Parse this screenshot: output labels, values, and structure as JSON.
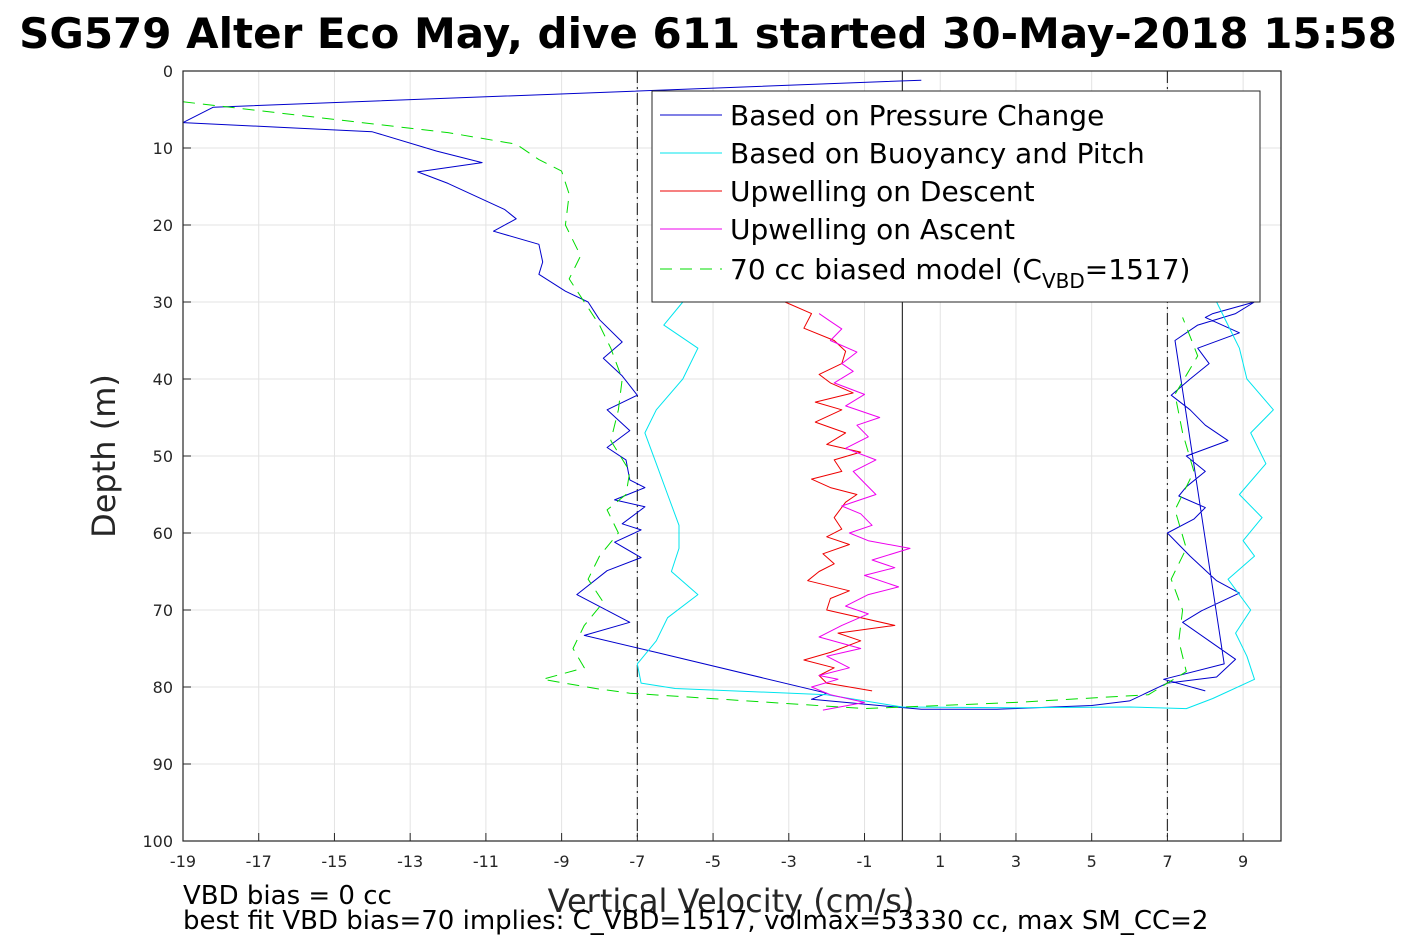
{
  "chart_data": {
    "type": "line",
    "title": "SG579 Alter Eco May, dive 611 started 30-May-2018 15:58",
    "xlabel": "Vertical Velocity (cm/s)",
    "ylabel": "Depth (m)",
    "xlim": [
      -19,
      10
    ],
    "ylim": [
      0,
      100
    ],
    "y_reversed": true,
    "grid": true,
    "xticks": [
      -19,
      -17,
      -15,
      -13,
      -11,
      -9,
      -7,
      -5,
      -3,
      -1,
      1,
      3,
      5,
      7,
      9
    ],
    "yticks": [
      0,
      10,
      20,
      30,
      40,
      50,
      60,
      70,
      80,
      90,
      100
    ],
    "legend_position": "top-right",
    "legend": [
      {
        "label": "Based on Pressure Change",
        "color": "#0000cc",
        "dash": "solid"
      },
      {
        "label": "Based on Buoyancy and Pitch",
        "color": "#00e5ee",
        "dash": "solid"
      },
      {
        "label": "Upwelling on Descent",
        "color": "#ee0000",
        "dash": "solid"
      },
      {
        "label": "Upwelling on Ascent",
        "color": "#ee00ee",
        "dash": "solid"
      },
      {
        "label_prefix": "70 cc biased model (C",
        "label_sub": "VBD",
        "label_suffix": "=1517)",
        "color": "#00dd00",
        "dash": "dashed"
      }
    ],
    "reference_lines": [
      {
        "x": -7,
        "style": "dash-dot",
        "color": "#333333"
      },
      {
        "x": 0,
        "style": "solid",
        "color": "#333333"
      },
      {
        "x": 7,
        "style": "dash-dot",
        "color": "#333333"
      }
    ],
    "series": [
      {
        "name": "Based on Pressure Change",
        "color": "#0000cc",
        "x": [
          0.5,
          -18.2,
          -19,
          -14,
          -12.3,
          -11.1,
          -12.8,
          -12.0,
          -10.5,
          -10.2,
          -10.8,
          -9.6,
          -9.5,
          -9.6,
          -8.9,
          -8.3,
          -8.0,
          -7.4,
          -7.9,
          -7.4,
          -7.0,
          -7.8,
          -7.2,
          -7.8,
          -7.3,
          -7.2,
          -6.8,
          -7.6,
          -6.8,
          -7.4,
          -6.9,
          -7.6,
          -6.9,
          -7.8,
          -8.6,
          -7.2,
          -8.4,
          -6.5,
          -2.0,
          -2.4,
          0.5,
          2.5,
          5.0,
          6.0,
          7.0,
          8.3,
          8.8,
          8.1,
          7.4,
          7.9,
          8.9,
          8.3,
          7.6,
          7.0,
          7.7,
          8.0,
          7.3,
          7.5,
          8.0,
          7.5,
          8.6,
          8.0,
          7.6,
          7.1,
          7.6,
          8.1,
          7.8,
          8.9,
          8.0,
          8.2,
          9.3,
          8.8,
          7.8,
          7.2,
          8.5,
          6.9,
          8.0
        ],
        "y": [
          1.2,
          4.7,
          6.7,
          7.9,
          10.4,
          11.9,
          13.1,
          14.6,
          18.0,
          19.2,
          20.8,
          22.5,
          24.8,
          26.4,
          28.6,
          30.0,
          32.3,
          35.2,
          37.3,
          39.6,
          42.1,
          44.0,
          46.7,
          48.9,
          50.5,
          53.1,
          54.1,
          55.7,
          56.6,
          58.8,
          59.6,
          61.2,
          63.2,
          64.9,
          68.0,
          71.6,
          73.3,
          75.5,
          80.8,
          81.6,
          82.9,
          82.9,
          82.4,
          81.8,
          79.5,
          78.7,
          76.4,
          74.0,
          71.6,
          70.1,
          67.8,
          66.2,
          63.0,
          60.0,
          58.2,
          56.7,
          55.2,
          54.0,
          52.0,
          50.0,
          48.0,
          46.0,
          44.0,
          42.1,
          40.0,
          38.0,
          36.0,
          34.0,
          32.0,
          31.5,
          30.0,
          31.5,
          33.0,
          35.0,
          77.0,
          79.0,
          80.5
        ]
      },
      {
        "name": "Based on Buoyancy and Pitch",
        "color": "#00e5ee",
        "x": [
          -4.6,
          -5.8,
          -5.6,
          -5.3,
          -5.6,
          -5.7,
          -6.4,
          -5.6,
          -6.1,
          -5.5,
          -6.0,
          -6.4,
          -5.8,
          -6.3,
          -5.4,
          -5.8,
          -6.5,
          -6.8,
          -6.5,
          -6.2,
          -5.9,
          -5.9,
          -6.1,
          -5.4,
          -6.2,
          -6.5,
          -7.0,
          -6.9,
          -6.0,
          -2.0,
          0.0,
          3.0,
          6.0,
          7.5,
          8.2,
          9.3,
          9.1,
          8.8,
          9.2,
          8.6,
          9.3,
          9.0,
          9.5,
          8.9,
          9.6,
          9.2,
          9.8,
          9.1,
          8.9,
          8.6,
          8.3,
          8.9,
          9.0,
          8.5,
          8.2,
          9.2
        ],
        "y": [
          6.5,
          8.0,
          10.0,
          12.0,
          14.0,
          16.0,
          18.0,
          20.0,
          22.0,
          24.0,
          26.0,
          28.0,
          30.0,
          33.0,
          36.0,
          40.0,
          44.0,
          47.0,
          51.0,
          55.0,
          59.0,
          62.0,
          65.0,
          68.0,
          71.0,
          74.0,
          77.0,
          79.5,
          80.2,
          81.0,
          82.6,
          82.7,
          82.6,
          82.8,
          81.5,
          79.0,
          76.0,
          73.0,
          70.0,
          66.0,
          63.0,
          61.0,
          58.0,
          55.0,
          51.0,
          47.0,
          44.0,
          40.0,
          36.0,
          33.0,
          30.0,
          28.0,
          25.0,
          22.0,
          19.0,
          15.0
        ]
      },
      {
        "name": "Upwelling on Descent",
        "color": "#ee0000",
        "x": [
          -3.1,
          -2.4,
          -2.6,
          -1.8,
          -1.5,
          -1.6,
          -2.2,
          -1.9,
          -1.3,
          -2.3,
          -1.6,
          -2.3,
          -1.5,
          -2.0,
          -1.1,
          -1.8,
          -1.6,
          -2.4,
          -1.9,
          -1.2,
          -1.5,
          -1.8,
          -1.6,
          -2.0,
          -1.4,
          -2.1,
          -1.8,
          -2.2,
          -2.5,
          -1.4,
          -1.9,
          -2.0,
          -0.2,
          -1.7,
          -1.1,
          -1.9,
          -2.6,
          -1.8,
          -2.2,
          -2.0,
          -0.8
        ],
        "y": [
          30.0,
          31.5,
          33.4,
          35.0,
          36.4,
          38.0,
          39.4,
          40.5,
          41.8,
          43.0,
          44.0,
          45.6,
          47.0,
          48.5,
          49.5,
          50.5,
          52.0,
          53.0,
          54.1,
          55.0,
          56.0,
          58.0,
          59.5,
          60.5,
          61.5,
          62.7,
          64.0,
          65.0,
          66.2,
          67.5,
          68.5,
          70.0,
          72.0,
          73.0,
          74.0,
          75.5,
          76.5,
          77.5,
          78.5,
          79.5,
          80.5
        ]
      },
      {
        "name": "Upwelling on Ascent",
        "color": "#ee00ee",
        "x": [
          -2.2,
          -1.9,
          -1.6,
          -1.9,
          -1.2,
          -1.6,
          -1.3,
          -1.8,
          -1.0,
          -1.5,
          -0.6,
          -1.2,
          -0.9,
          -1.5,
          -0.7,
          -1.3,
          -1.0,
          -0.7,
          -1.6,
          -1.1,
          -0.8,
          -1.4,
          -0.9,
          0.2,
          -0.8,
          -0.2,
          -1.0,
          -0.1,
          -0.9,
          -1.5,
          -0.9,
          -1.6,
          -2.2,
          -1.1,
          -2.0,
          -1.4,
          -2.2,
          -1.7,
          -2.4,
          -1.9,
          -1.0,
          -2.1
        ],
        "y": [
          31.5,
          32.5,
          33.5,
          35.0,
          36.5,
          38.0,
          39.0,
          40.5,
          42.0,
          43.5,
          45.0,
          46.0,
          47.5,
          49.0,
          50.5,
          52.0,
          53.5,
          55.0,
          56.5,
          57.5,
          59.0,
          60.0,
          61.0,
          62.0,
          63.5,
          64.5,
          65.5,
          67.0,
          68.0,
          69.5,
          70.5,
          72.0,
          73.5,
          75.0,
          76.0,
          77.5,
          78.5,
          79.0,
          80.0,
          81.0,
          82.0,
          83.0
        ]
      },
      {
        "name": "70 cc biased model (C_VBD=1517)",
        "color": "#00dd00",
        "x": [
          -19,
          -12.0,
          -10.2,
          -9.6,
          -9.0,
          -8.8,
          -8.9,
          -8.5,
          -8.8,
          -8.4,
          -8.0,
          -7.7,
          -7.4,
          -7.5,
          -7.7,
          -7.2,
          -7.3,
          -7.8,
          -7.5,
          -8.0,
          -8.3,
          -7.9,
          -8.4,
          -8.7,
          -8.4,
          -9.5,
          -8.1,
          -7.2,
          -1.0,
          3.0,
          6.5,
          7.5,
          7.3,
          7.4,
          7.1,
          7.5,
          7.2,
          7.7,
          7.4,
          7.2,
          7.8,
          7.4
        ],
        "y": [
          4.0,
          8.0,
          9.5,
          11.5,
          13.0,
          16.0,
          20.0,
          24.0,
          27.0,
          30.0,
          33.0,
          36.0,
          40.0,
          44.0,
          48.0,
          52.0,
          55.0,
          57.0,
          60.0,
          63.0,
          66.0,
          69.0,
          72.0,
          75.0,
          77.5,
          79.0,
          80.2,
          80.8,
          82.8,
          82.0,
          81.0,
          78.0,
          74.0,
          70.0,
          66.0,
          62.0,
          57.0,
          52.0,
          47.0,
          42.0,
          37.0,
          32.0
        ]
      }
    ],
    "annotations": [
      "VBD bias = 0 cc",
      "best fit VBD bias=70 implies: C_VBD=1517, volmax=53330 cc, max SM_CC=2"
    ]
  }
}
